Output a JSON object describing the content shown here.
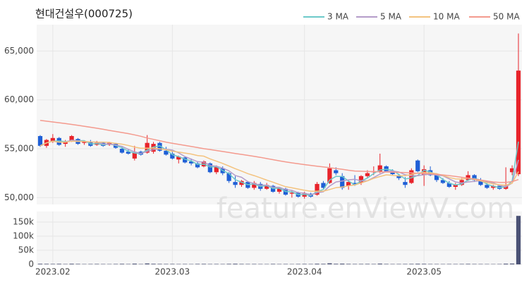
{
  "chart_data": {
    "type": "candlestick",
    "title": "현대건설우(000725)",
    "watermark": "feature.enViewV.com",
    "categories": [
      null,
      null,
      "2023.02",
      null,
      null,
      null,
      null,
      null,
      null,
      null,
      null,
      null,
      null,
      null,
      null,
      null,
      null,
      null,
      null,
      null,
      null,
      "2023.03",
      null,
      null,
      null,
      null,
      null,
      null,
      null,
      null,
      null,
      null,
      null,
      null,
      null,
      null,
      null,
      null,
      null,
      null,
      null,
      null,
      "2023.04",
      null,
      null,
      null,
      null,
      null,
      null,
      null,
      null,
      null,
      null,
      null,
      null,
      null,
      null,
      null,
      null,
      null,
      null,
      "2023.05",
      null,
      null,
      null,
      null,
      null,
      null,
      null,
      null,
      null,
      null,
      null,
      null,
      null,
      null,
      null
    ],
    "open": [
      56300,
      55300,
      55800,
      56100,
      55500,
      55800,
      56000,
      55600,
      55700,
      55400,
      55600,
      55400,
      55500,
      55000,
      54700,
      54000,
      54700,
      54600,
      54700,
      55600,
      54800,
      54500,
      53900,
      54100,
      53700,
      53500,
      53200,
      53500,
      52600,
      53000,
      52500,
      51600,
      51300,
      51600,
      51000,
      51400,
      50900,
      51200,
      50600,
      50900,
      50400,
      50500,
      50100,
      50400,
      50300,
      51500,
      51500,
      52800,
      52200,
      51200,
      51500,
      51500,
      52200,
      52600,
      52600,
      53200,
      52700,
      52300,
      51600,
      51500,
      53800,
      52300,
      52800,
      52300,
      51800,
      51500,
      51100,
      51300,
      51800,
      52300,
      51800,
      51300,
      51000,
      51200,
      50900,
      52600,
      52400
    ],
    "high": [
      56400,
      56000,
      56500,
      56200,
      55900,
      56400,
      56100,
      55800,
      55900,
      55800,
      55700,
      55700,
      55600,
      55200,
      54900,
      55300,
      54800,
      56400,
      55700,
      55700,
      55200,
      54800,
      54300,
      54200,
      54000,
      53700,
      53800,
      53600,
      53300,
      53200,
      52600,
      52200,
      51800,
      51700,
      51700,
      51600,
      51500,
      51300,
      51100,
      51000,
      50700,
      50600,
      50600,
      50500,
      51600,
      51700,
      53500,
      53100,
      52500,
      51800,
      52300,
      52300,
      52800,
      53200,
      54500,
      53300,
      52900,
      52400,
      52100,
      53000,
      53900,
      53300,
      53200,
      52500,
      52000,
      51700,
      51500,
      52000,
      52700,
      52400,
      52000,
      51600,
      51300,
      51300,
      53100,
      53300,
      66800
    ],
    "low": [
      55200,
      55100,
      55600,
      55300,
      55200,
      55700,
      55400,
      55400,
      55200,
      55300,
      55200,
      55300,
      55000,
      54500,
      54400,
      53800,
      54300,
      54500,
      54500,
      54700,
      54300,
      53900,
      53500,
      53500,
      53300,
      53000,
      53100,
      52500,
      52400,
      52300,
      51500,
      51000,
      51100,
      50900,
      50800,
      50700,
      50800,
      50500,
      50400,
      50200,
      50000,
      50000,
      49900,
      50000,
      50200,
      50900,
      51400,
      52300,
      50800,
      50800,
      51200,
      51300,
      52000,
      52300,
      52500,
      52600,
      52300,
      51800,
      51000,
      51400,
      52600,
      51200,
      52200,
      51600,
      51400,
      51000,
      50800,
      51200,
      51700,
      51600,
      51200,
      50900,
      50800,
      50800,
      50800,
      52300,
      52200
    ],
    "close": [
      55300,
      55900,
      56100,
      55400,
      55700,
      56300,
      55500,
      55700,
      55300,
      55600,
      55300,
      55600,
      55100,
      54600,
      54500,
      54600,
      54400,
      55600,
      55500,
      54800,
      54400,
      54000,
      54200,
      53600,
      53500,
      53100,
      53700,
      52600,
      53200,
      52500,
      51700,
      51300,
      51700,
      51000,
      51500,
      50900,
      51300,
      50600,
      51000,
      50300,
      50500,
      50100,
      50400,
      50100,
      51400,
      51000,
      53000,
      52500,
      51000,
      51600,
      51300,
      52200,
      52500,
      52700,
      53300,
      52700,
      52400,
      52000,
      51300,
      52800,
      52700,
      52900,
      52300,
      51800,
      51500,
      51100,
      51300,
      51800,
      52300,
      51800,
      51300,
      51000,
      51200,
      50900,
      51200,
      53000,
      63000
    ],
    "up_color": "#e8232a",
    "down_color": "#1f5fd6",
    "ylim": [
      49300,
      67700
    ],
    "yticks": [
      {
        "value": 50000,
        "label": "50,000"
      },
      {
        "value": 55000,
        "label": "55,000"
      },
      {
        "value": 60000,
        "label": "60,000"
      },
      {
        "value": 65000,
        "label": "65,000"
      }
    ],
    "grid": true,
    "legend": "top-right",
    "ma_series": [
      {
        "name": "3 MA",
        "color": "#6cc9c9",
        "values": [
          55300,
          55600,
          55770,
          55800,
          55730,
          55800,
          55830,
          55830,
          55500,
          55530,
          55400,
          55500,
          55330,
          55100,
          54730,
          54570,
          54500,
          54870,
          55170,
          55300,
          54900,
          54400,
          54200,
          53930,
          53770,
          53400,
          53430,
          53130,
          53170,
          52770,
          52470,
          51830,
          51570,
          51330,
          51400,
          51130,
          51230,
          50930,
          50970,
          50630,
          50600,
          50300,
          50330,
          50200,
          50630,
          50830,
          51800,
          52170,
          52170,
          51700,
          51300,
          51700,
          52000,
          52470,
          52830,
          52900,
          52800,
          52370,
          51900,
          52030,
          52270,
          52800,
          52630,
          52330,
          51870,
          51470,
          51300,
          51400,
          51800,
          51970,
          51800,
          51370,
          51170,
          51030,
          51100,
          51700,
          55730
        ]
      },
      {
        "name": "5 MA",
        "color": "#b49cc9",
        "values": [
          55300,
          55600,
          55770,
          55680,
          55680,
          55880,
          55800,
          55740,
          55700,
          55680,
          55480,
          55500,
          55380,
          55240,
          54940,
          54680,
          54520,
          54740,
          54920,
          54980,
          54940,
          54860,
          54580,
          54200,
          53940,
          53680,
          53620,
          53300,
          53220,
          53020,
          52740,
          52260,
          52080,
          51640,
          51440,
          51280,
          51280,
          51060,
          51060,
          50820,
          50740,
          50500,
          50460,
          50280,
          50500,
          50600,
          51180,
          51600,
          51700,
          51820,
          51880,
          51720,
          51720,
          52060,
          52400,
          52680,
          52720,
          52620,
          52340,
          52240,
          52240,
          52340,
          52400,
          52300,
          52240,
          51920,
          51600,
          51500,
          51600,
          51660,
          51740,
          51640,
          51520,
          51240,
          51120,
          51480,
          53860
        ]
      },
      {
        "name": "10 MA",
        "color": "#f4c37f",
        "values": [
          55300,
          55600,
          55770,
          55680,
          55680,
          55780,
          55750,
          55750,
          55690,
          55680,
          55680,
          55650,
          55550,
          55470,
          55340,
          55170,
          55060,
          55050,
          55070,
          54990,
          54900,
          54750,
          54660,
          54560,
          54460,
          54310,
          54240,
          53960,
          53730,
          53500,
          53230,
          52960,
          52710,
          52450,
          52250,
          52030,
          51790,
          51580,
          51340,
          51120,
          51000,
          50880,
          50750,
          50660,
          50650,
          50660,
          50830,
          51020,
          51080,
          51210,
          51290,
          51500,
          51710,
          51970,
          52160,
          52330,
          52270,
          52220,
          52250,
          52370,
          52510,
          52560,
          52540,
          52450,
          52270,
          52060,
          51920,
          51900,
          52000,
          51850,
          51710,
          51520,
          51410,
          51320,
          51280,
          51470,
          52660
        ]
      },
      {
        "name": "50 MA",
        "color": "#f49a8e",
        "values": [
          57900,
          57820,
          57740,
          57660,
          57580,
          57490,
          57400,
          57300,
          57200,
          57100,
          56990,
          56880,
          56770,
          56660,
          56550,
          56420,
          56280,
          56100,
          55960,
          55820,
          55680,
          55560,
          55450,
          55340,
          55230,
          55120,
          55010,
          54920,
          54820,
          54720,
          54620,
          54520,
          54420,
          54320,
          54220,
          54120,
          54000,
          53880,
          53770,
          53660,
          53560,
          53470,
          53380,
          53300,
          53220,
          53140,
          53060,
          52980,
          52900,
          52800,
          52720,
          52700,
          52680,
          52660,
          52640,
          52620,
          52600,
          52580,
          52560,
          52530,
          52500,
          52470,
          52430,
          52380,
          52320,
          52250,
          52170,
          52080,
          51990,
          51900,
          51800,
          51700,
          51600,
          51550,
          51550,
          51640,
          51850
        ]
      }
    ],
    "volume": {
      "color": "#4b5275",
      "values": [
        2100,
        1800,
        1500,
        1900,
        1200,
        2200,
        1600,
        1100,
        1300,
        1500,
        1200,
        1100,
        1400,
        1900,
        1300,
        2600,
        1200,
        3200,
        2000,
        1600,
        1400,
        1500,
        1200,
        1300,
        1100,
        1600,
        1700,
        1300,
        1400,
        1200,
        1800,
        2200,
        1500,
        1300,
        1400,
        1200,
        1100,
        1600,
        1200,
        1300,
        1000,
        1400,
        1500,
        1300,
        2200,
        1800,
        3800,
        2000,
        2600,
        1700,
        1400,
        1500,
        1600,
        1300,
        2700,
        1500,
        1200,
        1300,
        1400,
        1600,
        2100,
        1800,
        1300,
        1200,
        1100,
        1300,
        1200,
        1400,
        1700,
        1300,
        1200,
        1100,
        1000,
        1200,
        2400,
        2900,
        172000
      ],
      "ylim": [
        0,
        187500
      ],
      "yticks": [
        0,
        {
          "value": 50000,
          "label": "50k"
        },
        {
          "value": 100000,
          "label": "100k"
        },
        {
          "value": 150000,
          "label": "150k"
        }
      ]
    }
  }
}
